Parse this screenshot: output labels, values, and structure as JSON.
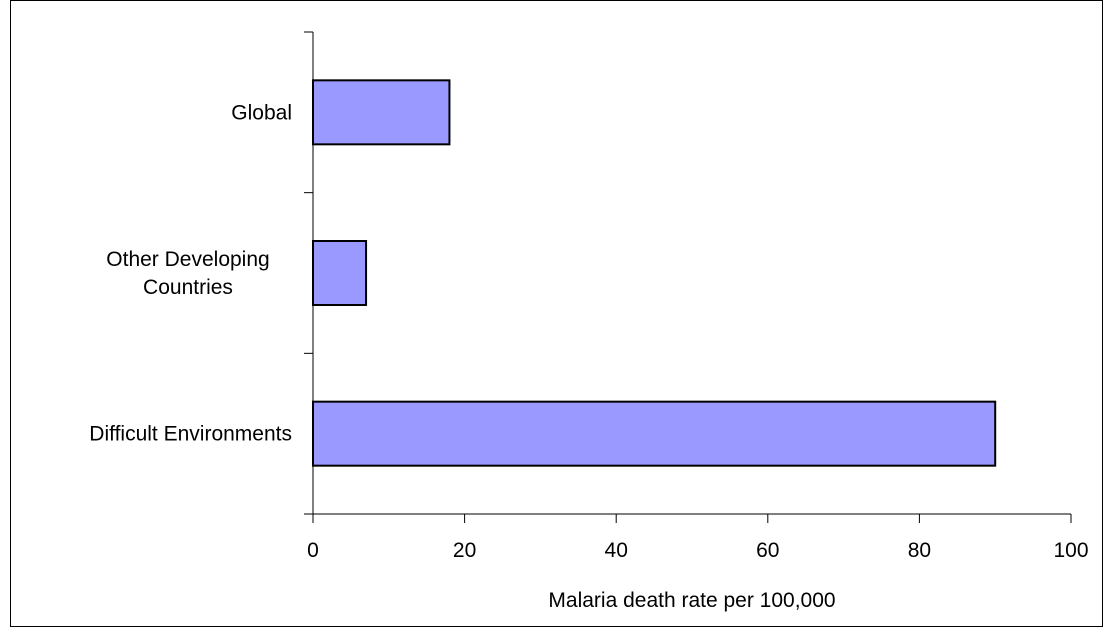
{
  "chart_data": {
    "type": "bar",
    "orientation": "horizontal",
    "categories": [
      "Global",
      "Other Developing Countries",
      "Difficult Environments"
    ],
    "category_lines": [
      [
        "Global"
      ],
      [
        "Other Developing",
        "Countries"
      ],
      [
        "Difficult Environments"
      ]
    ],
    "values": [
      18,
      7,
      90
    ],
    "xlim": [
      0,
      100
    ],
    "xticks": [
      0,
      20,
      40,
      60,
      80,
      100
    ],
    "xlabel": "Malaria death rate per 100,000",
    "ylabel": "",
    "title": "",
    "grid": false,
    "legend": "none",
    "bar_color": "#9999FF",
    "bar_border_color": "#000000"
  }
}
